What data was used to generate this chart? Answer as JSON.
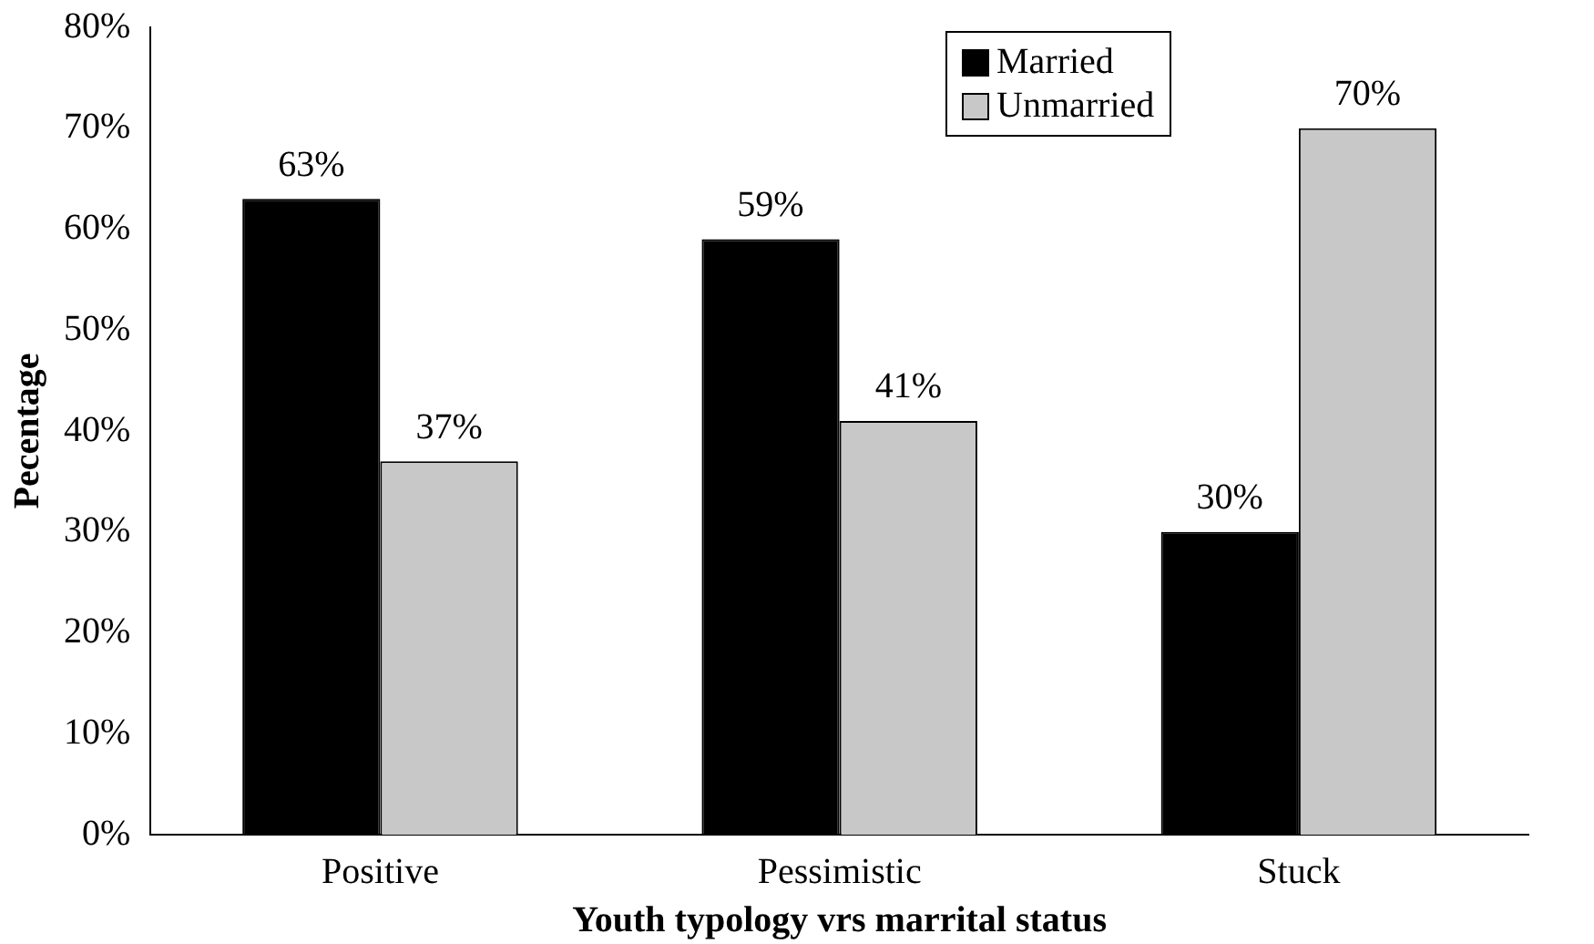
{
  "chart_data": {
    "type": "bar",
    "xlabel": "Youth typology vrs marrital status",
    "ylabel": "Pecentage",
    "categories": [
      "Positive",
      "Pessimistic",
      "Stuck"
    ],
    "series": [
      {
        "name": "Married",
        "color": "#000000",
        "values": [
          63,
          59,
          30
        ],
        "value_labels": [
          "63%",
          "59%",
          "30%"
        ]
      },
      {
        "name": "Unmarried",
        "color": "#c8c8c8",
        "values": [
          37,
          41,
          70
        ],
        "value_labels": [
          "37%",
          "41%",
          "70%"
        ]
      }
    ],
    "ylim": [
      0,
      80
    ],
    "yticks": [
      {
        "value": 0,
        "label": "0%"
      },
      {
        "value": 10,
        "label": "10%"
      },
      {
        "value": 20,
        "label": "20%"
      },
      {
        "value": 30,
        "label": "30%"
      },
      {
        "value": 40,
        "label": "40%"
      },
      {
        "value": 50,
        "label": "50%"
      },
      {
        "value": 60,
        "label": "60%"
      },
      {
        "value": 70,
        "label": "70%"
      },
      {
        "value": 80,
        "label": "80%"
      }
    ],
    "grid": false,
    "legend": "top right"
  }
}
